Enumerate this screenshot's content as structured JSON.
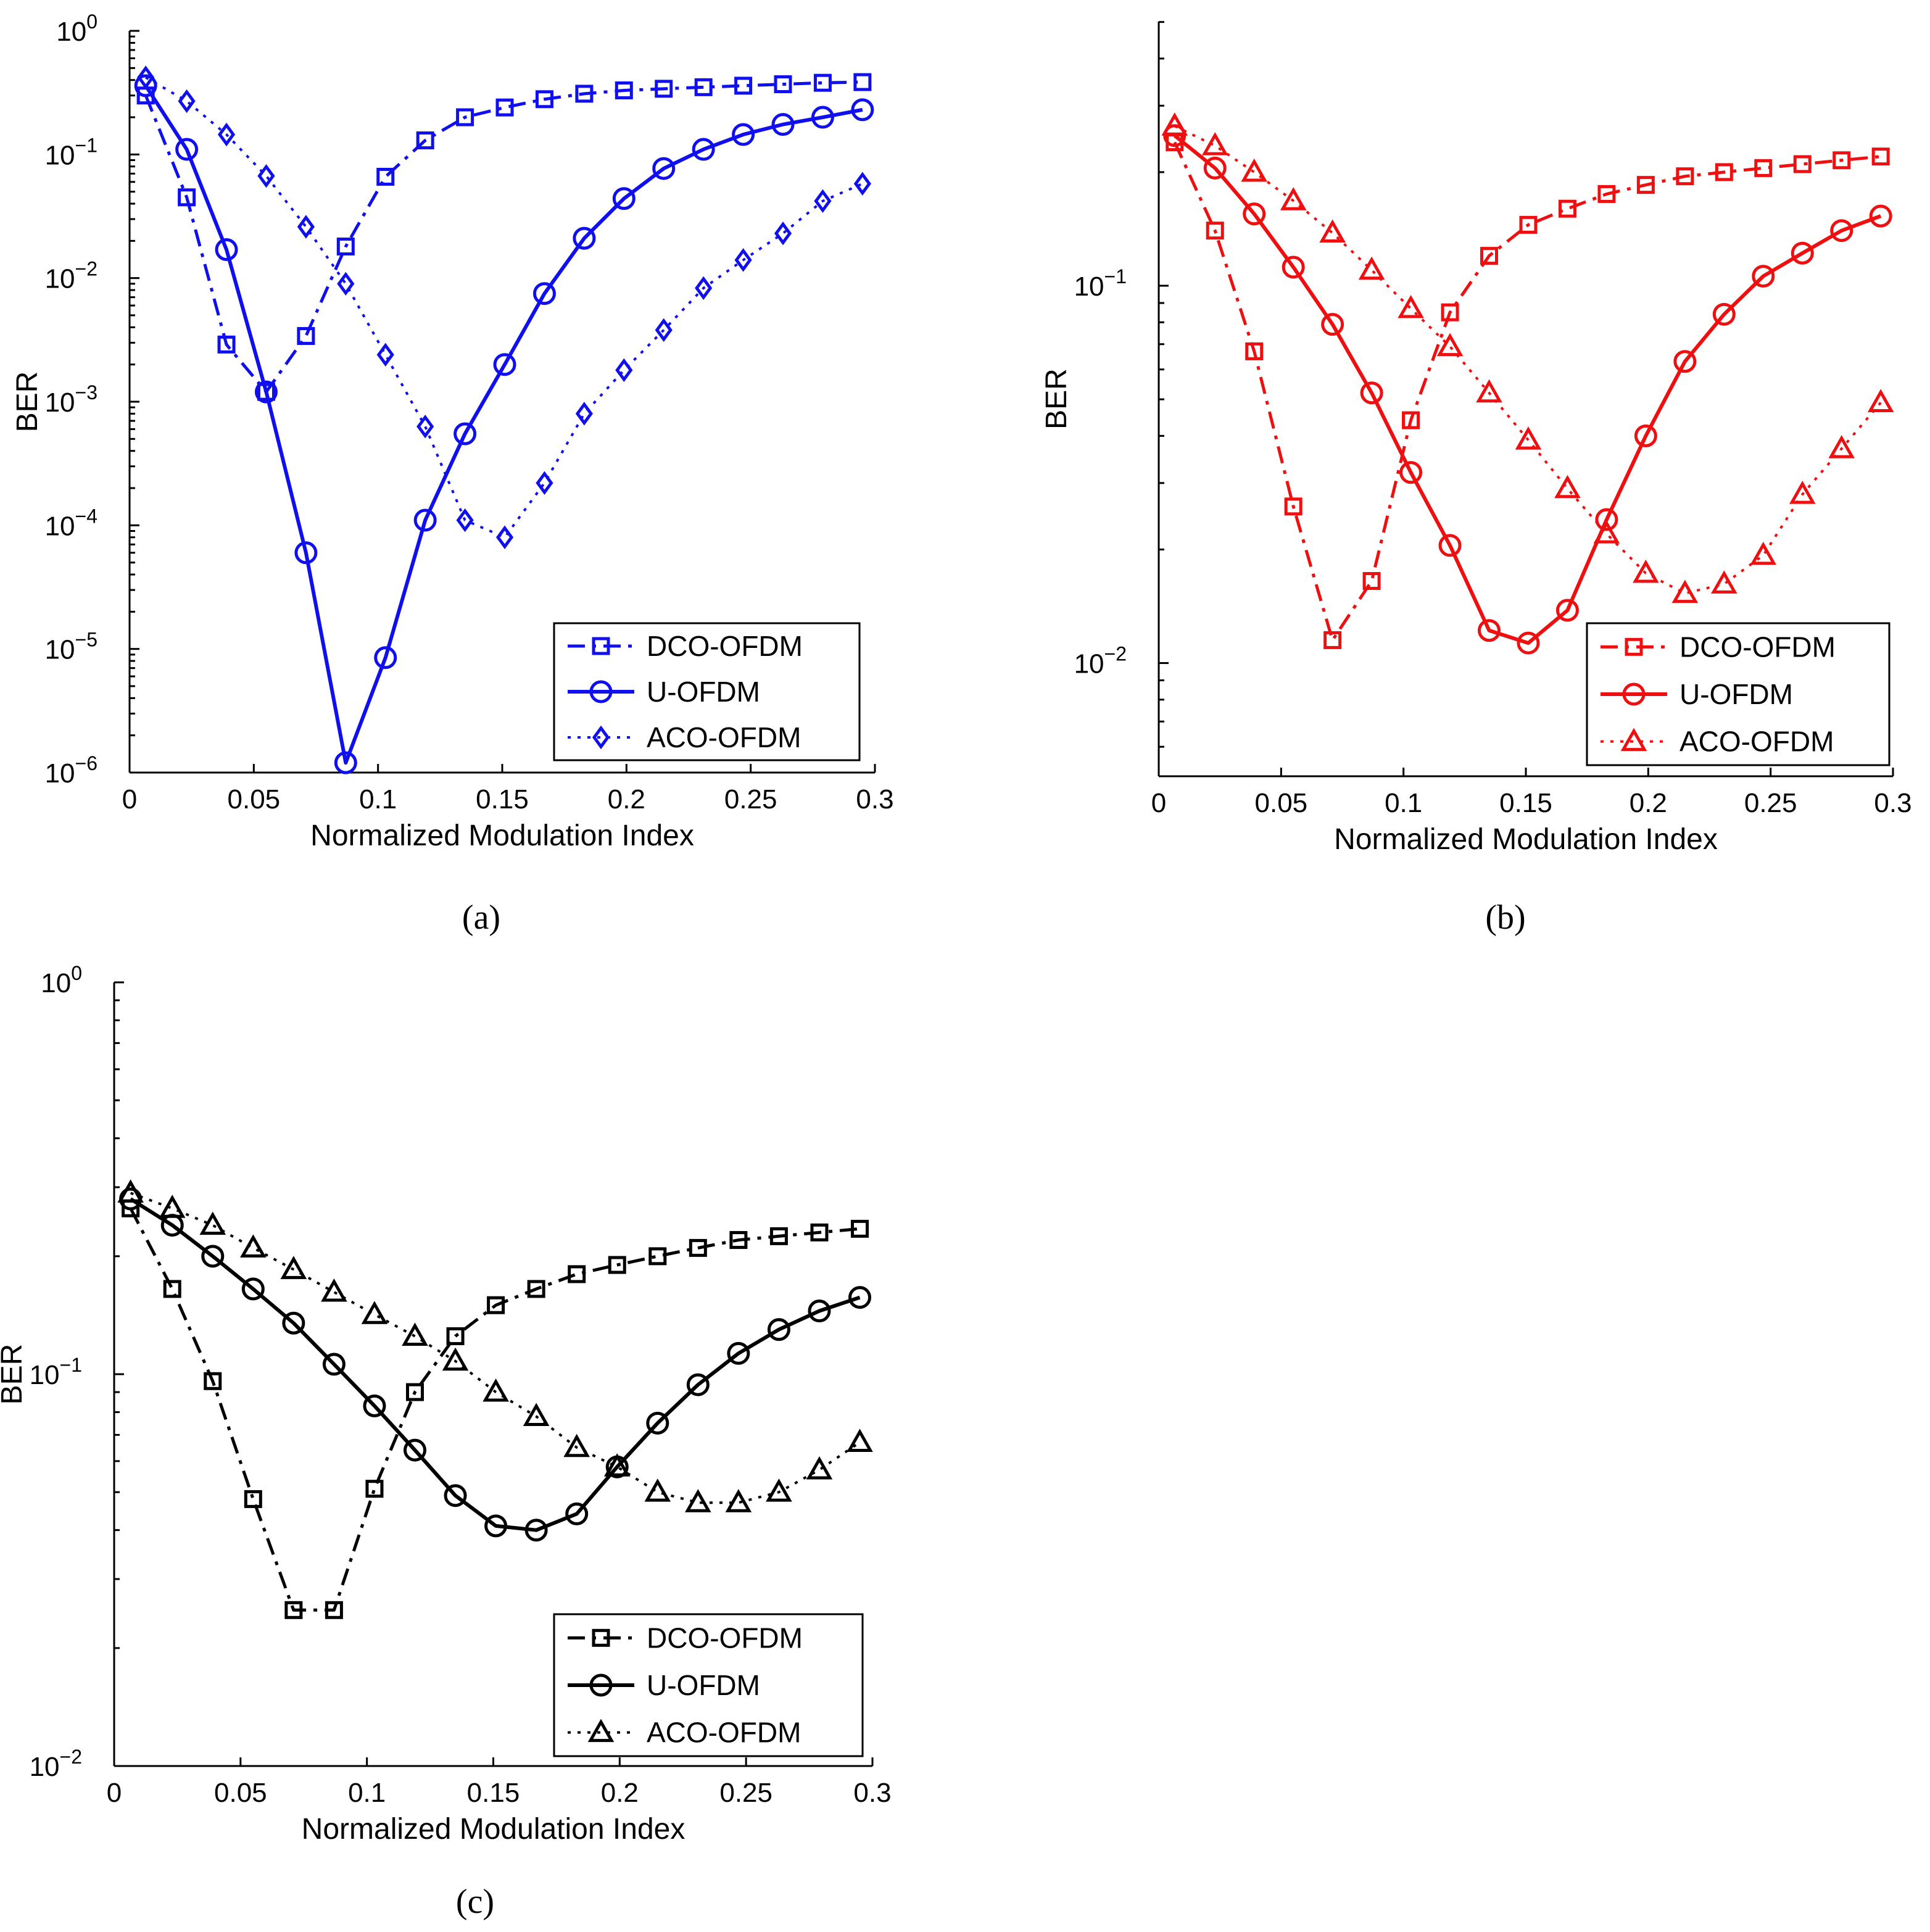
{
  "chart_data": [
    {
      "type": "line",
      "id": "a",
      "caption": "(a)",
      "color": "#1010ee",
      "xlabel": "Normalized Modulation Index",
      "ylabel": "BER",
      "xlim": [
        0,
        0.3
      ],
      "xticks": [
        "0",
        "0.05",
        "0.1",
        "0.15",
        "0.2",
        "0.25",
        "0.3"
      ],
      "ylim_log10": [
        -6,
        0
      ],
      "ytick_exponents": [
        "0",
        "-1",
        "-2",
        "-3",
        "-4",
        "-5",
        "-6"
      ],
      "ytick_base": "10",
      "legend_position": "bottom-right",
      "x": [
        0.0065,
        0.023,
        0.039,
        0.055,
        0.071,
        0.087,
        0.103,
        0.119,
        0.135,
        0.151,
        0.167,
        0.183,
        0.199,
        0.215,
        0.231,
        0.247,
        0.263,
        0.279,
        0.295
      ],
      "series": [
        {
          "name": "DCO-OFDM",
          "marker": "square",
          "dash": "dashdot",
          "lw": 5,
          "values": [
            0.3,
            0.045,
            0.0029,
            0.0012,
            0.0034,
            0.018,
            0.066,
            0.13,
            0.2,
            0.24,
            0.28,
            0.31,
            0.33,
            0.34,
            0.35,
            0.36,
            0.37,
            0.38,
            0.385
          ]
        },
        {
          "name": "U-OFDM",
          "marker": "circle",
          "dash": "solid",
          "lw": 6,
          "values": [
            0.36,
            0.11,
            0.017,
            0.0012,
            6e-05,
            1.2e-06,
            8.5e-06,
            0.00011,
            0.00055,
            0.002,
            0.0075,
            0.021,
            0.044,
            0.077,
            0.11,
            0.145,
            0.175,
            0.2,
            0.23
          ]
        },
        {
          "name": "ACO-OFDM",
          "marker": "diamond",
          "dash": "dotted",
          "lw": 4,
          "values": [
            0.42,
            0.27,
            0.145,
            0.067,
            0.026,
            0.009,
            0.0024,
            0.00063,
            0.00011,
            8e-05,
            0.00022,
            0.0008,
            0.0018,
            0.0038,
            0.0083,
            0.014,
            0.023,
            0.042,
            0.058
          ]
        }
      ]
    },
    {
      "type": "line",
      "id": "b",
      "caption": "(b)",
      "color": "#ee1010",
      "xlabel": "Normalized Modulation Index",
      "ylabel": "BER",
      "xlim": [
        0,
        0.3
      ],
      "xticks": [
        "0",
        "0.05",
        "0.1",
        "0.15",
        "0.2",
        "0.25",
        "0.3"
      ],
      "ylim_log10": [
        -2.3,
        -0.3
      ],
      "ytick_exponents": [
        "-1",
        "-2"
      ],
      "ytick_base": "10",
      "legend_position": "bottom-right",
      "x": [
        0.0065,
        0.023,
        0.039,
        0.055,
        0.071,
        0.087,
        0.103,
        0.119,
        0.135,
        0.151,
        0.167,
        0.183,
        0.199,
        0.215,
        0.231,
        0.247,
        0.263,
        0.279,
        0.295
      ],
      "series": [
        {
          "name": "DCO-OFDM",
          "marker": "square",
          "dash": "dashdot",
          "lw": 5,
          "values": [
            0.24,
            0.14,
            0.067,
            0.026,
            0.0115,
            0.0165,
            0.044,
            0.085,
            0.12,
            0.145,
            0.16,
            0.175,
            0.185,
            0.195,
            0.2,
            0.205,
            0.21,
            0.215,
            0.22
          ]
        },
        {
          "name": "U-OFDM",
          "marker": "circle",
          "dash": "solid",
          "lw": 6,
          "values": [
            0.25,
            0.205,
            0.155,
            0.112,
            0.079,
            0.052,
            0.032,
            0.0205,
            0.0122,
            0.0113,
            0.0138,
            0.024,
            0.04,
            0.063,
            0.084,
            0.106,
            0.122,
            0.14,
            0.153
          ]
        },
        {
          "name": "ACO-OFDM",
          "marker": "triangle",
          "dash": "dotted",
          "lw": 4,
          "values": [
            0.265,
            0.235,
            0.2,
            0.168,
            0.138,
            0.11,
            0.087,
            0.069,
            0.052,
            0.039,
            0.029,
            0.022,
            0.0173,
            0.0153,
            0.0162,
            0.0193,
            0.028,
            0.037,
            0.049
          ]
        }
      ]
    },
    {
      "type": "line",
      "id": "c",
      "caption": "(c)",
      "color": "#000000",
      "xlabel": "Normalized Modulation Index",
      "ylabel": "BER",
      "xlim": [
        0,
        0.3
      ],
      "xticks": [
        "0",
        "0.05",
        "0.1",
        "0.15",
        "0.2",
        "0.25",
        "0.3"
      ],
      "ylim_log10": [
        -2,
        0
      ],
      "ytick_exponents": [
        "0",
        "-1",
        "-2"
      ],
      "ytick_base": "10",
      "legend_position": "bottom-right",
      "x": [
        0.0065,
        0.023,
        0.039,
        0.055,
        0.071,
        0.087,
        0.103,
        0.119,
        0.135,
        0.151,
        0.167,
        0.183,
        0.199,
        0.215,
        0.231,
        0.247,
        0.263,
        0.279,
        0.295
      ],
      "series": [
        {
          "name": "DCO-OFDM",
          "marker": "square",
          "dash": "dashdot",
          "lw": 5,
          "values": [
            0.265,
            0.165,
            0.096,
            0.048,
            0.025,
            0.025,
            0.051,
            0.09,
            0.125,
            0.15,
            0.165,
            0.18,
            0.19,
            0.2,
            0.21,
            0.22,
            0.225,
            0.23,
            0.235
          ]
        },
        {
          "name": "U-OFDM",
          "marker": "circle",
          "dash": "solid",
          "lw": 6,
          "values": [
            0.28,
            0.24,
            0.2,
            0.165,
            0.135,
            0.106,
            0.083,
            0.064,
            0.049,
            0.041,
            0.04,
            0.044,
            0.058,
            0.075,
            0.094,
            0.113,
            0.13,
            0.145,
            0.157
          ]
        },
        {
          "name": "ACO-OFDM",
          "marker": "triangle",
          "dash": "dotted",
          "lw": 4,
          "values": [
            0.29,
            0.265,
            0.24,
            0.21,
            0.185,
            0.162,
            0.142,
            0.125,
            0.108,
            0.09,
            0.078,
            0.065,
            0.058,
            0.05,
            0.047,
            0.047,
            0.05,
            0.057,
            0.067
          ]
        }
      ]
    }
  ]
}
